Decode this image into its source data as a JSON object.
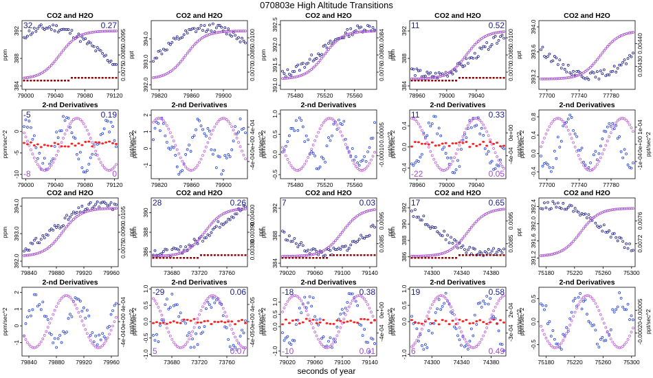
{
  "figure": {
    "title": "070803e   High Altitude Transitions",
    "xlabel": "seconds of year"
  },
  "colors": {
    "co2": "#1a1a8c",
    "h2o": "#a347d1",
    "flag": "#8b0000",
    "deriv_co2": "#1f3fe0",
    "deriv_h2o": "#c060d8",
    "deriv_flag": "#ff2020",
    "corner_left": "#1a1a8c",
    "corner_right": "#a347d1"
  },
  "chart_data": [
    {
      "type": "scatter",
      "title": "CO2 and H2O",
      "ylabel": "ppm",
      "ylabel_right": "ppt",
      "xlim": [
        78995,
        79125
      ],
      "xticks": [
        "79000",
        "79040",
        "79080",
        "79120"
      ],
      "ylim": [
        383.5,
        393.5
      ],
      "yticks": [
        "384",
        "388",
        "392"
      ],
      "ylim_right": [
        0.0072,
        0.0102
      ],
      "yticks_right": [
        "0.0075",
        "0.0085",
        "0.0095"
      ],
      "corner_tl": "32",
      "corner_tr": "0.27",
      "corner_bl": "",
      "corner_br": "",
      "seed": 11
    },
    {
      "type": "scatter",
      "title": "CO2 and H2O",
      "ylabel": "",
      "ylabel_right": "",
      "xlim": [
        79810,
        79930
      ],
      "xticks": [
        "79820",
        "79860",
        "79900"
      ],
      "ylim": [
        391.8,
        394.8
      ],
      "yticks": [
        "392.0",
        "393.0",
        "394.0"
      ],
      "ylim_right": [
        0.0068,
        0.0102
      ],
      "yticks_right": [
        "0.0070",
        "0.0085",
        "0.0100"
      ],
      "corner_tl": "",
      "corner_tr": "",
      "corner_bl": "",
      "corner_br": "",
      "seed": 12
    },
    {
      "type": "scatter",
      "title": "CO2 and H2O",
      "ylabel": "ppm",
      "ylabel_right": "ppt",
      "xlim": [
        75460,
        75590
      ],
      "xticks": [
        "75480",
        "75520",
        "75560"
      ],
      "ylim": [
        390.9,
        392.6
      ],
      "yticks": [
        "391.0",
        "391.5",
        "392.0",
        "392.5"
      ],
      "ylim_right": [
        0.0075,
        0.0086
      ],
      "yticks_right": [
        "0.0076",
        "0.0080",
        "0.0084"
      ],
      "corner_tl": "",
      "corner_tr": "",
      "corner_bl": "",
      "corner_br": "",
      "seed": 13
    },
    {
      "type": "scatter",
      "title": "CO2 and H2O",
      "ylabel": "ppm",
      "ylabel_right": "ppt",
      "xlim": [
        78950,
        79080
      ],
      "xticks": [
        "78960",
        "79000",
        "79040"
      ],
      "ylim": [
        383.5,
        393.5
      ],
      "yticks": [
        "384",
        "388",
        "392"
      ],
      "ylim_right": [
        0.0068,
        0.0102
      ],
      "yticks_right": [
        "0.0070",
        "0.0085",
        "0.0100"
      ],
      "corner_tl": "11",
      "corner_tr": "0.52",
      "corner_bl": "",
      "corner_br": "",
      "seed": 14
    },
    {
      "type": "scatter",
      "title": "CO2 and H2O",
      "ylabel": "",
      "ylabel_right": "",
      "xlim": [
        77690,
        77810
      ],
      "xticks": [
        "77700",
        "77740",
        "77780"
      ],
      "ylim": [
        393.0,
        394.1
      ],
      "yticks": [
        "393.2",
        "393.6",
        "394.0"
      ],
      "ylim_right": [
        0.0042,
        0.00455
      ],
      "yticks_right": [
        "0.00430",
        "0.00440"
      ],
      "corner_tl": "",
      "corner_tr": "",
      "corner_bl": "",
      "corner_br": "",
      "seed": 15
    },
    {
      "type": "scatter",
      "title": "2-nd Derivatives",
      "ylabel": "ppm/sec^2",
      "ylabel_right": "ppt/sec^2",
      "xlim": [
        78995,
        79125
      ],
      "xticks": [
        "79000",
        "79040",
        "79080",
        "79120"
      ],
      "ylim": [
        -11,
        5
      ],
      "yticks": [
        "-10",
        "-5",
        "0"
      ],
      "ylim_right": [
        -1,
        1
      ],
      "yticks_right": [],
      "corner_tl": "-5",
      "corner_tr": "0.19",
      "corner_bl": "-8",
      "corner_br": "0",
      "seed": 21
    },
    {
      "type": "scatter",
      "title": "2-nd Derivatives",
      "ylabel": "ppm/sec^2",
      "ylabel_right": "ppt/sec^2",
      "xlim": [
        79810,
        79930
      ],
      "xticks": [
        "79820",
        "79860",
        "79900"
      ],
      "ylim": [
        -1.8,
        2.3
      ],
      "yticks": [
        "-1",
        "0",
        "1",
        "2"
      ],
      "ylim_right": [
        -1,
        1
      ],
      "yticks_right": [
        "-4e-04",
        "0e+00",
        "4e-04"
      ],
      "corner_tl": "",
      "corner_tr": "",
      "corner_bl": "",
      "corner_br": "",
      "seed": 22
    },
    {
      "type": "scatter",
      "title": "2-nd Derivatives",
      "ylabel": "ppm/sec^2",
      "ylabel_right": "ppt/sec^2",
      "xlim": [
        75460,
        75590
      ],
      "xticks": [
        "75480",
        "75520",
        "75560"
      ],
      "ylim": [
        -0.6,
        1.1
      ],
      "yticks": [
        "-0.5",
        "0.0",
        "0.5",
        "1.0"
      ],
      "ylim_right": [
        -1,
        1
      ],
      "yticks_right": [
        "-0.00010",
        "0.00005"
      ],
      "corner_tl": "",
      "corner_tr": "",
      "corner_bl": "",
      "corner_br": "",
      "seed": 23
    },
    {
      "type": "scatter",
      "title": "2-nd Derivatives",
      "ylabel": "ppm/sec^2",
      "ylabel_right": "ppt/sec^2",
      "xlim": [
        78950,
        79080
      ],
      "xticks": [
        "78960",
        "79000",
        "79040"
      ],
      "ylim": [
        -0.6,
        0.7
      ],
      "yticks": [
        "-0.4",
        "0.0",
        "0.4"
      ],
      "ylim_right": [
        -1,
        1
      ],
      "yticks_right": [
        "-4e-04",
        "0e+00"
      ],
      "corner_tl": "11",
      "corner_tr": "0.33",
      "corner_bl": "-22",
      "corner_br": "0.05",
      "seed": 24
    },
    {
      "type": "scatter",
      "title": "2-nd Derivatives",
      "ylabel": "ppm/sec^2",
      "ylabel_right": "ppt/sec^2",
      "xlim": [
        77690,
        77810
      ],
      "xticks": [
        "77700",
        "77740",
        "77780"
      ],
      "ylim": [
        -0.55,
        0.95
      ],
      "yticks": [
        "-0.4",
        "0.0",
        "0.4",
        "0.8"
      ],
      "ylim_right": [
        -1,
        1
      ],
      "yticks_right": [
        "-1e-04",
        "0e+00",
        "1e-04"
      ],
      "corner_tl": "",
      "corner_tr": "",
      "corner_bl": "",
      "corner_br": "",
      "seed": 25
    },
    {
      "type": "scatter",
      "title": "CO2 and H2O",
      "ylabel": "ppm",
      "ylabel_right": "ppt",
      "xlim": [
        79830,
        79970
      ],
      "xticks": [
        "79840",
        "79880",
        "79920",
        "79960"
      ],
      "ylim": [
        391.8,
        394.3
      ],
      "yticks": [
        "392.0",
        "393.0",
        "394.0"
      ],
      "ylim_right": [
        0.0072,
        0.0106
      ],
      "yticks_right": [
        "0.0075",
        "0.0090",
        "0.0105"
      ],
      "corner_tl": "",
      "corner_tr": "",
      "corner_bl": "",
      "corner_br": "",
      "seed": 31
    },
    {
      "type": "scatter",
      "title": "CO2 and H2O",
      "ylabel": "ppm",
      "ylabel_right": "ppt",
      "xlim": [
        73650,
        73790
      ],
      "xticks": [
        "73680",
        "73720",
        "73760"
      ],
      "ylim": [
        384.5,
        391.5
      ],
      "yticks": [
        "386",
        "388",
        "390"
      ],
      "ylim_right": [
        0.0038,
        0.00405
      ],
      "yticks_right": [
        "0.00380",
        "0.00390",
        "0.00400"
      ],
      "corner_tl": "28",
      "corner_tr": "0.26",
      "corner_bl": "",
      "corner_br": "",
      "seed": 32
    },
    {
      "type": "scatter",
      "title": "CO2 and H2O",
      "ylabel": "ppm",
      "ylabel_right": "ppt",
      "xlim": [
        79010,
        79150
      ],
      "xticks": [
        "79020",
        "79060",
        "79100",
        "79140"
      ],
      "ylim": [
        383.5,
        393.5
      ],
      "yticks": [
        "384",
        "388",
        "392"
      ],
      "ylim_right": [
        0.0078,
        0.0102
      ],
      "yticks_right": [
        "0.0085",
        "0.0095"
      ],
      "corner_tl": "7",
      "corner_tr": "0.03",
      "corner_bl": "",
      "corner_br": "",
      "seed": 33
    },
    {
      "type": "scatter",
      "title": "CO2 and H2O",
      "ylabel": "ppm",
      "ylabel_right": "ppt",
      "xlim": [
        74270,
        74400
      ],
      "xticks": [
        "74300",
        "74340",
        "74380"
      ],
      "ylim": [
        384.8,
        393.2
      ],
      "yticks": [
        "386",
        "388",
        "390",
        "392"
      ],
      "ylim_right": [
        0.0082,
        0.0102
      ],
      "yticks_right": [
        "0.0085",
        "0.0095"
      ],
      "corner_tl": "17",
      "corner_tr": "0.65",
      "corner_bl": "",
      "corner_br": "",
      "seed": 34
    },
    {
      "type": "scatter",
      "title": "CO2 and H2O",
      "ylabel": "",
      "ylabel_right": "",
      "xlim": [
        75170,
        75305
      ],
      "xticks": [
        "75180",
        "75220",
        "75260",
        "75300"
      ],
      "ylim": [
        391.0,
        392.6
      ],
      "yticks": [
        "391.2",
        "391.6",
        "392.0",
        "392.4"
      ],
      "ylim_right": [
        0.007,
        0.0079
      ],
      "yticks_right": [
        "0.0072",
        "0.0076"
      ],
      "corner_tl": "",
      "corner_tr": "",
      "corner_bl": "",
      "corner_br": "",
      "seed": 35
    },
    {
      "type": "scatter",
      "title": "2-nd Derivatives",
      "ylabel": "ppm/sec^2",
      "ylabel_right": "ppt/sec^2",
      "xlim": [
        79830,
        79970
      ],
      "xticks": [
        "79840",
        "79880",
        "79920",
        "79960"
      ],
      "ylim": [
        -1.8,
        2.3
      ],
      "yticks": [
        "-1",
        "0",
        "1",
        "2"
      ],
      "ylim_right": [
        -1,
        1
      ],
      "yticks_right": [
        "-4e-04",
        "0e+00",
        "4e-04"
      ],
      "corner_tl": "",
      "corner_tr": "",
      "corner_bl": "",
      "corner_br": "",
      "seed": 41
    },
    {
      "type": "scatter",
      "title": "2-nd Derivatives",
      "ylabel": "ppm/sec^2",
      "ylabel_right": "ppt/sec^2",
      "xlim": [
        73650,
        73790
      ],
      "xticks": [
        "73680",
        "73720",
        "73760"
      ],
      "ylim": [
        -1.05,
        1.05
      ],
      "yticks": [
        "-1.0",
        "-0.5",
        "0.0",
        "0.5",
        "1.0"
      ],
      "ylim_right": [
        -1,
        1
      ],
      "yticks_right": [
        "-4e-05",
        "0e+00",
        "4e-05"
      ],
      "corner_tl": "-29",
      "corner_tr": "0.06",
      "corner_bl": "5",
      "corner_br": "0.07",
      "seed": 42
    },
    {
      "type": "scatter",
      "title": "2-nd Derivatives",
      "ylabel": "ppm/sec^2",
      "ylabel_right": "ppt/sec^2",
      "xlim": [
        79010,
        79150
      ],
      "xticks": [
        "79020",
        "79060",
        "79100",
        "79140"
      ],
      "ylim": [
        -1.2,
        1.6
      ],
      "yticks": [
        "-1.0",
        "0.0",
        "0.5",
        "1.0"
      ],
      "ylim_right": [
        -1,
        1
      ],
      "yticks_right": [
        "-4e-04",
        "0e+00"
      ],
      "corner_tl": "-18",
      "corner_tr": "0.38",
      "corner_bl": "-10",
      "corner_br": "0.01",
      "seed": 43
    },
    {
      "type": "scatter",
      "title": "2-nd Derivatives",
      "ylabel": "ppm/sec^2",
      "ylabel_right": "ppt/sec^2",
      "xlim": [
        74270,
        74400
      ],
      "xticks": [
        "74300",
        "74340",
        "74380"
      ],
      "ylim": [
        -1.05,
        1.05
      ],
      "yticks": [
        "-1.0",
        "0.0",
        "0.5",
        "1.0"
      ],
      "ylim_right": [
        -1,
        1
      ],
      "yticks_right": [
        "-3e-04",
        "2e-04"
      ],
      "corner_tl": "19",
      "corner_tr": "0.58",
      "corner_bl": "6",
      "corner_br": "0.49",
      "seed": 44
    },
    {
      "type": "scatter",
      "title": "2-nd Derivatives",
      "ylabel": "ppm/sec^2",
      "ylabel_right": "ppt/sec^2",
      "xlim": [
        75170,
        75305
      ],
      "xticks": [
        "75180",
        "75220",
        "75260",
        "75300"
      ],
      "ylim": [
        -0.75,
        0.75
      ],
      "yticks": [
        "-0.5",
        "0.0",
        "0.5"
      ],
      "ylim_right": [
        -1,
        1
      ],
      "yticks_right": [
        "-0.00020",
        "-0.00005"
      ],
      "corner_tl": "",
      "corner_tr": "",
      "corner_bl": "",
      "corner_br": "",
      "seed": 45
    }
  ]
}
